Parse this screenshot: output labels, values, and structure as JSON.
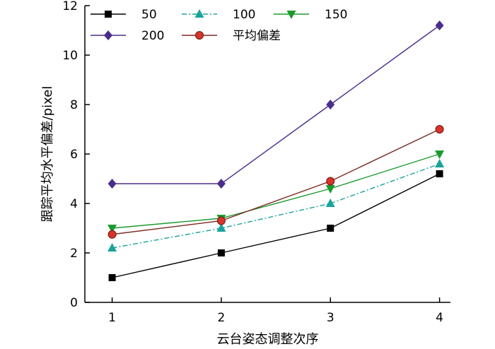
{
  "chart_data": {
    "type": "line",
    "title": "",
    "xlabel": "云台姿态调整次序",
    "ylabel": "跟踪平均水平偏差/pixel",
    "x": [
      1,
      2,
      3,
      4
    ],
    "xlim": [
      0.75,
      4.1
    ],
    "ylim": [
      0,
      12
    ],
    "xticks": [
      1,
      2,
      3,
      4
    ],
    "yticks": [
      0,
      2,
      4,
      6,
      8,
      10,
      12
    ],
    "grid": false,
    "legend_position": "top-left",
    "series": [
      {
        "name": "50",
        "values": [
          1.0,
          2.0,
          3.0,
          5.2
        ],
        "color": "#000000",
        "marker": "square",
        "line_color": "#000000",
        "dash": "solid"
      },
      {
        "name": "100",
        "values": [
          2.2,
          3.0,
          4.0,
          5.6
        ],
        "color": "#1aa39a",
        "marker": "triangle-up",
        "line_color": "#1aa39a",
        "dash": "dashdot"
      },
      {
        "name": "150",
        "values": [
          3.0,
          3.4,
          4.6,
          6.0
        ],
        "color": "#1a9b2e",
        "marker": "triangle-down",
        "line_color": "#1a9b2e",
        "dash": "solid"
      },
      {
        "name": "200",
        "values": [
          4.8,
          4.8,
          8.0,
          11.2
        ],
        "color": "#4b2d8c",
        "marker": "diamond",
        "line_color": "#4b2d8c",
        "dash": "solid"
      },
      {
        "name": "平均偏差",
        "values": [
          2.75,
          3.3,
          4.9,
          7.0
        ],
        "color": "#d8342a",
        "marker": "circle",
        "line_color": "#7a2a22",
        "dash": "solid"
      }
    ]
  }
}
